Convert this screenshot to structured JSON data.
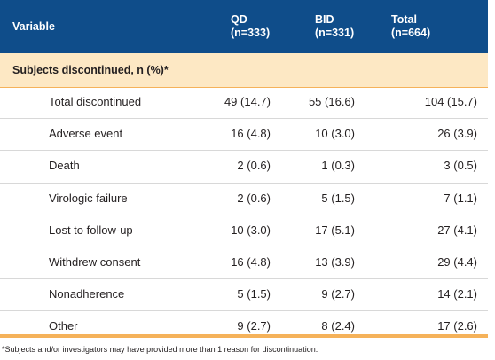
{
  "header": {
    "variable": "Variable",
    "qd": "QD",
    "qd_n": "(n=333)",
    "bid": "BID",
    "bid_n": "(n=331)",
    "total": "Total",
    "total_n": "(n=664)"
  },
  "section": {
    "title": "Subjects discontinued, n (%)*"
  },
  "rows": [
    {
      "label": "Total discontinued",
      "qd": "49 (14.7)",
      "bid": "55 (16.6)",
      "total": "104 (15.7)"
    },
    {
      "label": "Adverse event",
      "qd": "16 (4.8)",
      "bid": "10 (3.0)",
      "total": "26 (3.9)"
    },
    {
      "label": "Death",
      "qd": "2 (0.6)",
      "bid": "1 (0.3)",
      "total": "3 (0.5)"
    },
    {
      "label": "Virologic failure",
      "qd": "2 (0.6)",
      "bid": "5 (1.5)",
      "total": "7 (1.1)"
    },
    {
      "label": "Lost to follow-up",
      "qd": "10 (3.0)",
      "bid": "17 (5.1)",
      "total": "27 (4.1)"
    },
    {
      "label": "Withdrew consent",
      "qd": "16 (4.8)",
      "bid": "13 (3.9)",
      "total": "29 (4.4)"
    },
    {
      "label": "Nonadherence",
      "qd": "5 (1.5)",
      "bid": "9 (2.7)",
      "total": "14 (2.1)"
    },
    {
      "label": "Other",
      "qd": "9 (2.7)",
      "bid": "8 (2.4)",
      "total": "17 (2.6)"
    }
  ],
  "footnote": "*Subjects and/or investigators may have provided more than 1 reason for discontinuation.",
  "colors": {
    "header_bg": "#0f4d8a",
    "section_bg": "#fde8c4",
    "accent": "#f5b25a"
  }
}
